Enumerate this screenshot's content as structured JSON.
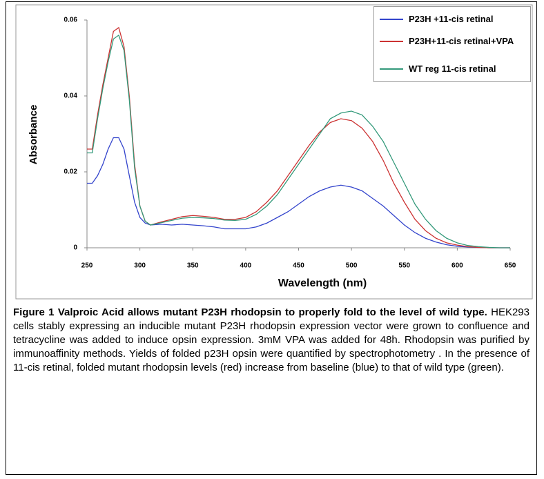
{
  "chart_data": {
    "type": "line",
    "xlabel": "Wavelength (nm)",
    "ylabel": "Absorbance",
    "x": [
      250,
      255,
      260,
      265,
      270,
      275,
      280,
      285,
      290,
      295,
      300,
      305,
      310,
      320,
      330,
      340,
      350,
      360,
      370,
      380,
      390,
      400,
      410,
      420,
      430,
      440,
      450,
      460,
      470,
      480,
      490,
      500,
      510,
      520,
      530,
      540,
      550,
      560,
      570,
      580,
      590,
      600,
      610,
      620,
      630,
      640,
      650
    ],
    "series": [
      {
        "name": "P23H +11-cis retinal",
        "color": "#3344cc",
        "values": [
          0.017,
          0.017,
          0.019,
          0.022,
          0.026,
          0.029,
          0.029,
          0.026,
          0.019,
          0.012,
          0.008,
          0.0065,
          0.006,
          0.0062,
          0.006,
          0.0062,
          0.006,
          0.0058,
          0.0055,
          0.005,
          0.005,
          0.005,
          0.0055,
          0.0065,
          0.008,
          0.0095,
          0.0115,
          0.0135,
          0.015,
          0.016,
          0.0165,
          0.016,
          0.015,
          0.013,
          0.011,
          0.0085,
          0.006,
          0.004,
          0.0025,
          0.0015,
          0.0008,
          0.0004,
          0.0002,
          0.0001,
          0,
          0,
          0
        ]
      },
      {
        "name": "P23H+11-cis retinal+VPA",
        "color": "#cc3333",
        "values": [
          0.026,
          0.026,
          0.035,
          0.043,
          0.05,
          0.057,
          0.058,
          0.053,
          0.04,
          0.022,
          0.011,
          0.007,
          0.006,
          0.0068,
          0.0075,
          0.0082,
          0.0085,
          0.0083,
          0.008,
          0.0075,
          0.0075,
          0.008,
          0.0095,
          0.012,
          0.015,
          0.019,
          0.023,
          0.027,
          0.0305,
          0.033,
          0.034,
          0.0335,
          0.0315,
          0.028,
          0.023,
          0.017,
          0.012,
          0.0075,
          0.0045,
          0.0025,
          0.0013,
          0.0007,
          0.0003,
          0.0001,
          0,
          0,
          0
        ]
      },
      {
        "name": "WT reg 11-cis retinal",
        "color": "#33997a",
        "values": [
          0.025,
          0.025,
          0.034,
          0.042,
          0.049,
          0.055,
          0.056,
          0.052,
          0.039,
          0.021,
          0.011,
          0.007,
          0.006,
          0.0066,
          0.0072,
          0.0078,
          0.008,
          0.0079,
          0.0077,
          0.0073,
          0.0072,
          0.0075,
          0.0088,
          0.011,
          0.014,
          0.018,
          0.022,
          0.026,
          0.03,
          0.034,
          0.0355,
          0.036,
          0.035,
          0.032,
          0.028,
          0.0225,
          0.017,
          0.0115,
          0.0075,
          0.0045,
          0.0025,
          0.0013,
          0.0006,
          0.0003,
          0.0001,
          0,
          0
        ]
      }
    ],
    "xlim": [
      250,
      650
    ],
    "xticks": [
      250,
      300,
      350,
      400,
      450,
      500,
      550,
      600,
      650
    ],
    "ylim": [
      0,
      0.06
    ],
    "yticks": [
      0,
      0.02,
      0.04,
      0.06
    ],
    "legend": "upper right"
  },
  "caption": {
    "title": "Figure 1 Valproic Acid allows mutant P23H rhodopsin to properly fold to the level of wild type.",
    "text": "HEK293 cells stably expressing an inducible mutant P23H rhodopsin expression vector were grown to confluence and tetracycline was added to induce opsin expression. 3mM VPA was added for 48h. Rhodopsin was purified by immunoaffinity methods. Yields of folded p23H opsin were quantified by spectrophotometry . In the presence of 11-cis retinal, folded mutant rhodopsin levels (red) increase from baseline (blue) to that of wild type (green)."
  }
}
